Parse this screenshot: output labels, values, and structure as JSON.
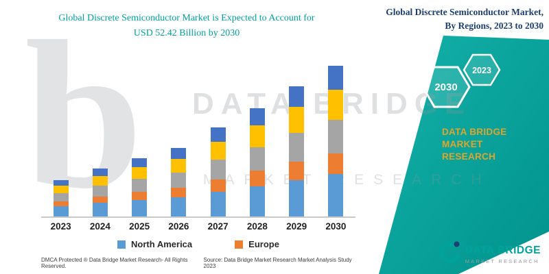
{
  "palette": {
    "teal": "#00A39C",
    "teal-light": "#14B2AA",
    "teal-dark": "#00938C",
    "navy": "#1D3E70",
    "gold": "#DFA52B",
    "wm": "#8E9499"
  },
  "left": {
    "title_line1": "Global Discrete Semiconductor Market is Expected to Account for",
    "title_line2": "USD 52.42 Billion by 2030",
    "footer_dmca": "DMCA Protected ® Data Bridge Market Research-  All Rights Reserved.",
    "footer_source": "Source: Data Bridge Market Research  Market Analysis Study 2023"
  },
  "right": {
    "title_line1": "Global Discrete Semiconductor Market,",
    "title_line2": "By Regions, 2023 to 2030",
    "hex_2030": "2030",
    "hex_2023": "2023",
    "brand_line1": "DATA BRIDGE MARKET",
    "brand_line2": "RESEARCH"
  },
  "watermark": {
    "letter": "b",
    "line1": "DATA BRIDGE",
    "line2": "MARKET RESEARCH"
  },
  "logo": {
    "title": "DATA BRIDGE",
    "subtitle": "MARKET RESEARCH"
  },
  "legend": [
    {
      "label": "North America",
      "color": "#5B9BD5"
    },
    {
      "label": "Europe",
      "color": "#ED7D31"
    }
  ],
  "chart_data": {
    "type": "bar",
    "stacked": true,
    "title": "Global Discrete Semiconductor Market is Expected to Account for USD 52.42 Billion by 2030",
    "categories": [
      "2023",
      "2024",
      "2025",
      "2026",
      "2027",
      "2028",
      "2029",
      "2030"
    ],
    "units": "USD Billion (estimated from bar heights; no value axis shown)",
    "legend_position": "bottom",
    "grid": false,
    "totals_estimated": [
      12.6,
      16.7,
      20.3,
      23.8,
      31.0,
      37.7,
      45.3,
      52.42
    ],
    "series": [
      {
        "name": "North America",
        "color": "#5B9BD5",
        "values": [
          3.5,
          4.7,
          5.7,
          6.7,
          8.7,
          10.6,
          12.7,
          14.7
        ]
      },
      {
        "name": "Europe",
        "color": "#ED7D31",
        "values": [
          1.8,
          2.3,
          2.8,
          3.3,
          4.3,
          5.3,
          6.3,
          7.3
        ]
      },
      {
        "name": "unlabeled-gray",
        "color": "#A5A5A5",
        "values": [
          2.8,
          3.7,
          4.5,
          5.2,
          6.8,
          8.3,
          10.0,
          11.5
        ]
      },
      {
        "name": "unlabeled-yellow",
        "color": "#FFC000",
        "values": [
          2.5,
          3.3,
          4.1,
          4.8,
          6.2,
          7.5,
          9.1,
          10.5
        ]
      },
      {
        "name": "unlabeled-darkblue",
        "color": "#4472C4",
        "values": [
          2.0,
          2.7,
          3.2,
          3.8,
          5.0,
          6.0,
          7.2,
          8.42
        ]
      }
    ]
  }
}
